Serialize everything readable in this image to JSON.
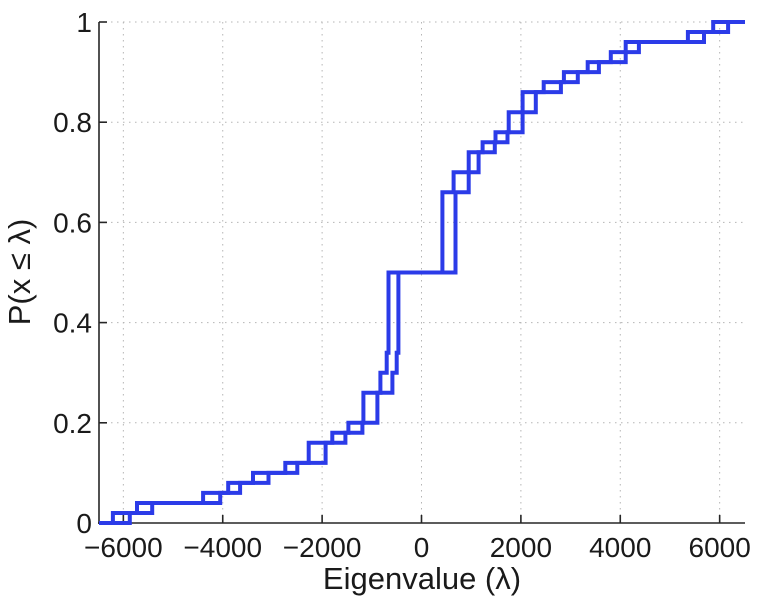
{
  "chart_data": {
    "type": "line",
    "subtype": "ecdf-step",
    "title": "",
    "xlabel": "Eigenvalue (λ)",
    "ylabel": "P(x ≤ λ)",
    "xlim": [
      -6490,
      6510
    ],
    "ylim": [
      0,
      1
    ],
    "x_ticks": [
      -6000,
      -4000,
      -2000,
      0,
      2000,
      4000,
      6000
    ],
    "x_tick_labels": [
      "−6000",
      "−4000",
      "−2000",
      "0",
      "2000",
      "4000",
      "6000"
    ],
    "y_ticks": [
      0,
      0.2,
      0.4,
      0.6,
      0.8,
      1
    ],
    "y_tick_labels": [
      "0",
      "0.2",
      "0.4",
      "0.6",
      "0.8",
      "1"
    ],
    "grid": true,
    "grid_style": "dotted",
    "grid_color": "#b5b5b5",
    "axis_color": "#262626",
    "line_color": "#2b3be8",
    "line_width": 4,
    "legend": "none",
    "series": [
      {
        "name": "ecdf-curve-leading",
        "steps": [
          [
            -6210,
            0.02
          ],
          [
            -5725,
            0.04
          ],
          [
            -4395,
            0.06
          ],
          [
            -3890,
            0.08
          ],
          [
            -3390,
            0.1
          ],
          [
            -2740,
            0.12
          ],
          [
            -2270,
            0.16
          ],
          [
            -1795,
            0.18
          ],
          [
            -1471,
            0.2
          ],
          [
            -1169,
            0.26
          ],
          [
            -827,
            0.3
          ],
          [
            -700,
            0.34
          ],
          [
            -665,
            0.5
          ],
          [
            420,
            0.66
          ],
          [
            645,
            0.7
          ],
          [
            950,
            0.74
          ],
          [
            1230,
            0.76
          ],
          [
            1490,
            0.78
          ],
          [
            1755,
            0.82
          ],
          [
            2035,
            0.86
          ],
          [
            2460,
            0.88
          ],
          [
            2865,
            0.9
          ],
          [
            3345,
            0.92
          ],
          [
            3810,
            0.94
          ],
          [
            4110,
            0.96
          ],
          [
            5360,
            0.98
          ],
          [
            5870,
            1.0
          ]
        ]
      },
      {
        "name": "ecdf-curve-lagging",
        "steps": [
          [
            -5870,
            0.02
          ],
          [
            -5420,
            0.04
          ],
          [
            -4050,
            0.06
          ],
          [
            -3650,
            0.08
          ],
          [
            -3080,
            0.1
          ],
          [
            -2500,
            0.12
          ],
          [
            -1930,
            0.16
          ],
          [
            -1532,
            0.18
          ],
          [
            -1189,
            0.2
          ],
          [
            -887,
            0.26
          ],
          [
            -585,
            0.3
          ],
          [
            -500,
            0.34
          ],
          [
            -464,
            0.5
          ],
          [
            685,
            0.66
          ],
          [
            950,
            0.7
          ],
          [
            1150,
            0.74
          ],
          [
            1475,
            0.76
          ],
          [
            1730,
            0.78
          ],
          [
            2035,
            0.82
          ],
          [
            2300,
            0.86
          ],
          [
            2805,
            0.88
          ],
          [
            3145,
            0.9
          ],
          [
            3570,
            0.92
          ],
          [
            4110,
            0.94
          ],
          [
            4375,
            0.96
          ],
          [
            5685,
            0.98
          ],
          [
            6170,
            1.0
          ]
        ]
      }
    ]
  }
}
